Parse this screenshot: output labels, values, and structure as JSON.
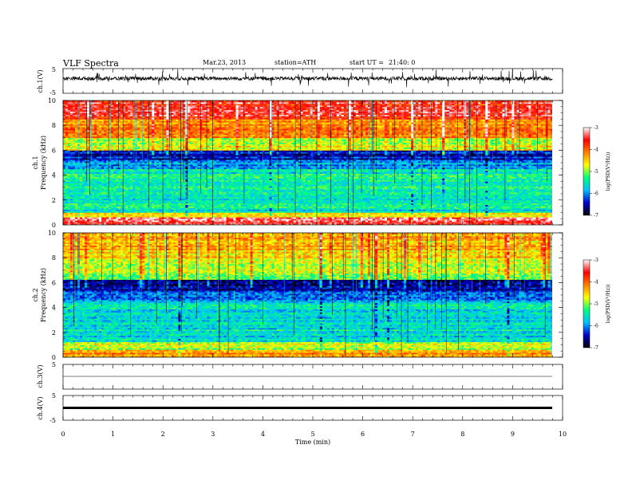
{
  "header": {
    "title": "VLF Spectra",
    "date": "Mar.23, 2013",
    "station": "station=ATH",
    "start_label": "start UT =",
    "start_time": "21:40: 0"
  },
  "chart_data": [
    {
      "type": "line",
      "panel": "ch1-waveform",
      "ylabel": "ch.1(V)",
      "ylim": [
        -5,
        5
      ],
      "yticks": [
        "5",
        "-5"
      ],
      "x_extent_min": [
        0,
        9.8
      ],
      "baseline_v": 1.0,
      "description_series": "noisy waveform with sferic spikes, amplitude about ±2 V around +1 V"
    },
    {
      "type": "heatmap",
      "panel": "ch1-spectrogram",
      "ylabel_lines": [
        "ch.1",
        "Frequency (kHz)"
      ],
      "ylim": [
        0,
        10
      ],
      "yticks": [
        "0",
        "2",
        "4",
        "6",
        "8",
        "10"
      ],
      "x_extent_min": [
        0,
        9.8
      ],
      "colorbar": {
        "label": "log(PSD(V²/Hz))",
        "range": [
          -7,
          -3
        ],
        "ticks": [
          "-3",
          "-4",
          "-5",
          "-6",
          "-7"
        ],
        "colors": [
          "#000000",
          "#0000d0",
          "#00c0ff",
          "#00ff80",
          "#ffff00",
          "#ff8000",
          "#ff0000",
          "#ffffff"
        ]
      },
      "bands_khz": [
        {
          "from": 0,
          "to": 0.6,
          "logpsd": -3.3
        },
        {
          "from": 0.6,
          "to": 1.0,
          "logpsd": -4.6
        },
        {
          "from": 1.0,
          "to": 4.5,
          "logpsd": -5.5
        },
        {
          "from": 4.5,
          "to": 5.2,
          "logpsd": -5.9
        },
        {
          "from": 5.2,
          "to": 6.0,
          "logpsd": -6.4
        },
        {
          "from": 6.0,
          "to": 7.0,
          "logpsd": -4.8
        },
        {
          "from": 7.0,
          "to": 8.5,
          "logpsd": -4.2
        },
        {
          "from": 8.5,
          "to": 10,
          "logpsd": -3.6
        }
      ]
    },
    {
      "type": "heatmap",
      "panel": "ch2-spectrogram",
      "ylabel_lines": [
        "ch.2",
        "Frequency (kHz)"
      ],
      "ylim": [
        0,
        10
      ],
      "yticks": [
        "0",
        "2",
        "4",
        "6",
        "8",
        "10"
      ],
      "x_extent_min": [
        0,
        9.8
      ],
      "colorbar": {
        "label": "log(PSD(V²/Hz))",
        "range": [
          -7,
          -3
        ],
        "ticks": [
          "-3",
          "-4",
          "-5",
          "-6",
          "-7"
        ],
        "colors": [
          "#000000",
          "#0000d0",
          "#00c0ff",
          "#00ff80",
          "#ffff00",
          "#ff8000",
          "#ff0000",
          "#ffffff"
        ]
      },
      "bands_khz": [
        {
          "from": 0,
          "to": 0.6,
          "logpsd": -4.3
        },
        {
          "from": 0.6,
          "to": 1.2,
          "logpsd": -4.9
        },
        {
          "from": 1.2,
          "to": 4.5,
          "logpsd": -5.6
        },
        {
          "from": 4.5,
          "to": 5.2,
          "logpsd": -6.0
        },
        {
          "from": 5.2,
          "to": 6.2,
          "logpsd": -6.5
        },
        {
          "from": 6.2,
          "to": 8.0,
          "logpsd": -4.9
        },
        {
          "from": 8.0,
          "to": 10,
          "logpsd": -4.4
        }
      ]
    },
    {
      "type": "line",
      "panel": "ch3-waveform",
      "ylabel": "ch.3(V)",
      "ylim": [
        -5,
        5
      ],
      "yticks": [
        "5"
      ],
      "x_extent_min": [
        0,
        9.8
      ],
      "baseline_v": 0.0
    },
    {
      "type": "line",
      "panel": "ch4-waveform",
      "ylabel": "ch.4(V)",
      "ylim": [
        -5,
        5
      ],
      "yticks": [
        "5",
        "-5"
      ],
      "x_extent_min": [
        0,
        9.8
      ],
      "baseline_v": 0.0
    }
  ],
  "x_axis": {
    "label": "Time (min)",
    "range": [
      0,
      10
    ],
    "ticks": [
      "0",
      "1",
      "2",
      "3",
      "4",
      "5",
      "6",
      "7",
      "8",
      "9",
      "10"
    ]
  },
  "colors": {
    "axis": "#000000",
    "background": "#ffffff"
  }
}
